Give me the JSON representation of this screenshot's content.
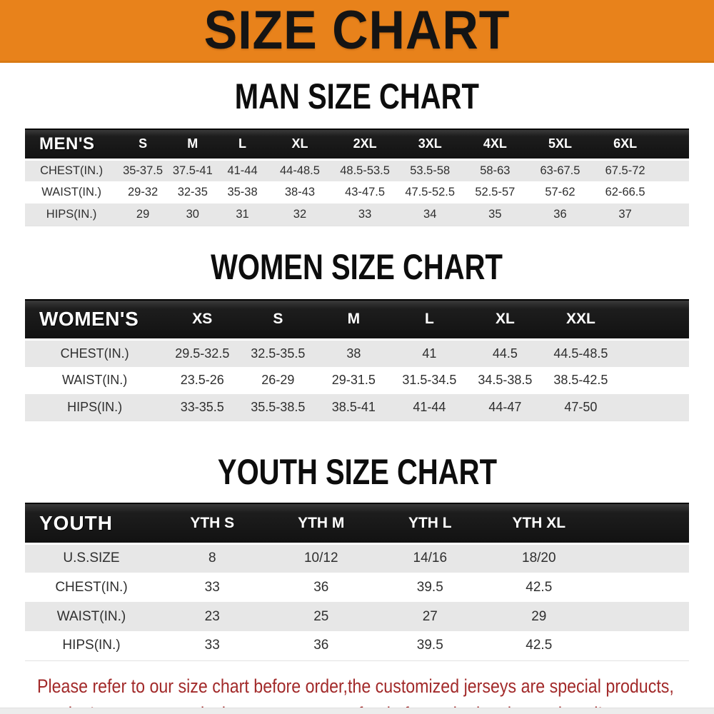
{
  "banner": {
    "title": "SIZE CHART"
  },
  "sections": [
    {
      "heading": "MAN SIZE CHART",
      "table": {
        "group_label": "MEN'S",
        "columns": [
          "S",
          "M",
          "L",
          "XL",
          "2XL",
          "3XL",
          "4XL",
          "5XL",
          "6XL"
        ],
        "rows": [
          {
            "label": "CHEST(IN.)",
            "values": [
              "35-37.5",
              "37.5-41",
              "41-44",
              "44-48.5",
              "48.5-53.5",
              "53.5-58",
              "58-63",
              "63-67.5",
              "67.5-72"
            ]
          },
          {
            "label": "WAIST(IN.)",
            "values": [
              "29-32",
              "32-35",
              "35-38",
              "38-43",
              "43-47.5",
              "47.5-52.5",
              "52.5-57",
              "57-62",
              "62-66.5"
            ]
          },
          {
            "label": "HIPS(IN.)",
            "values": [
              "29",
              "30",
              "31",
              "32",
              "33",
              "34",
              "35",
              "36",
              "37"
            ]
          }
        ]
      }
    },
    {
      "heading": "WOMEN SIZE CHART",
      "table": {
        "group_label": "WOMEN'S",
        "columns": [
          "XS",
          "S",
          "M",
          "L",
          "XL",
          "XXL"
        ],
        "rows": [
          {
            "label": "CHEST(IN.)",
            "values": [
              "29.5-32.5",
              "32.5-35.5",
              "38",
              "41",
              "44.5",
              "44.5-48.5"
            ]
          },
          {
            "label": "WAIST(IN.)",
            "values": [
              "23.5-26",
              "26-29",
              "29-31.5",
              "31.5-34.5",
              "34.5-38.5",
              "38.5-42.5"
            ]
          },
          {
            "label": "HIPS(IN.)",
            "values": [
              "33-35.5",
              "35.5-38.5",
              "38.5-41",
              "41-44",
              "44-47",
              "47-50"
            ]
          }
        ]
      }
    },
    {
      "heading": "YOUTH SIZE CHART",
      "table": {
        "group_label": "YOUTH",
        "columns": [
          "YTH S",
          "YTH M",
          "YTH L",
          "YTH XL"
        ],
        "rows": [
          {
            "label": "U.S.SIZE",
            "values": [
              "8",
              "10/12",
              "14/16",
              "18/20"
            ]
          },
          {
            "label": "CHEST(IN.)",
            "values": [
              "33",
              "36",
              "39.5",
              "42.5"
            ]
          },
          {
            "label": "WAIST(IN.)",
            "values": [
              "23",
              "25",
              "27",
              "29"
            ]
          },
          {
            "label": "HIPS(IN.)",
            "values": [
              "33",
              "36",
              "39.5",
              "42.5"
            ]
          }
        ]
      }
    }
  ],
  "disclaimer": {
    "line1": "Please refer to our size chart before order,the customized jerseys are special products,",
    "line2": "we don't accept cancel, change, teturn or refund after order has been placed!"
  },
  "colors": {
    "banner_bg": "#E8821B",
    "table_header_bg": "#191919",
    "row_alt_bg": "#E7E7E7",
    "disclaimer_red": "#A22A2A"
  }
}
